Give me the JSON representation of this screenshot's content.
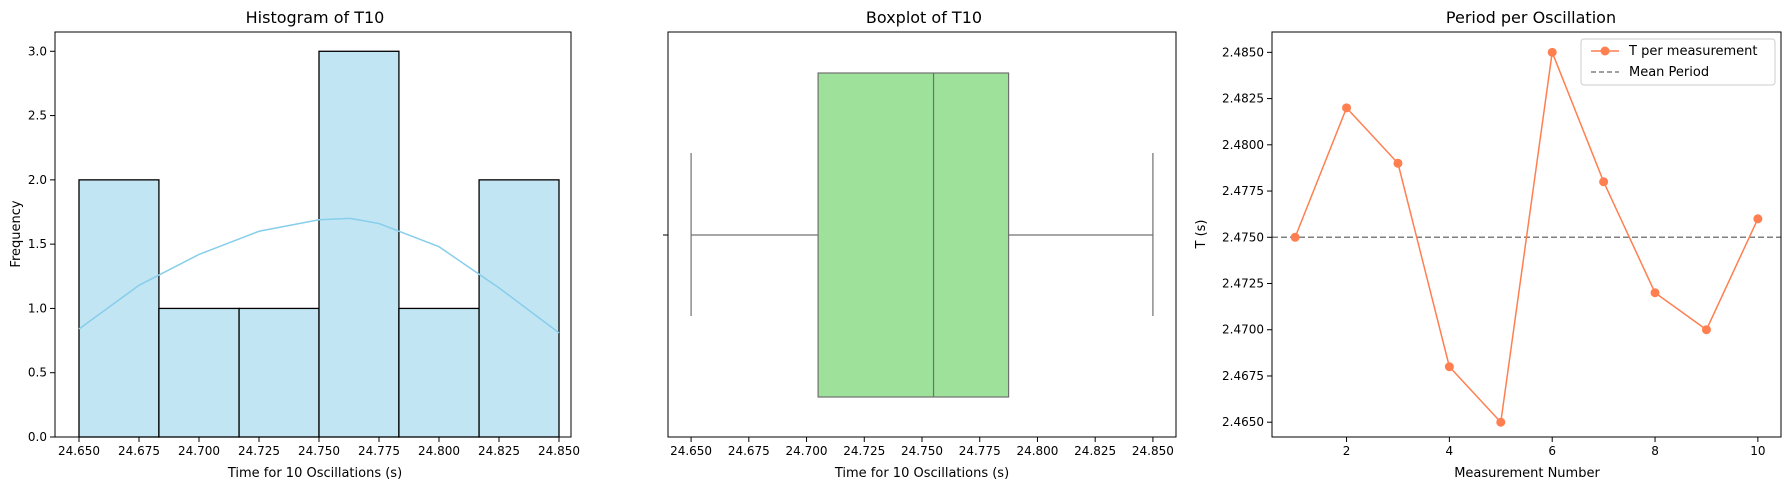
{
  "chart_data": [
    {
      "type": "bar",
      "title": "Histogram of T10",
      "xlabel": "Time for 10 Oscillations (s)",
      "ylabel": "Frequency",
      "xlim": [
        24.64,
        24.855
      ],
      "ylim": [
        0,
        3.15
      ],
      "xticks": [
        "24.650",
        "24.675",
        "24.700",
        "24.725",
        "24.750",
        "24.775",
        "24.800",
        "24.825",
        "24.850"
      ],
      "yticks": [
        "0.0",
        "0.5",
        "1.0",
        "1.5",
        "2.0",
        "2.5",
        "3.0"
      ],
      "bins": [
        {
          "start": 24.65,
          "end": 24.6833,
          "count": 2
        },
        {
          "start": 24.6833,
          "end": 24.7167,
          "count": 1
        },
        {
          "start": 24.7167,
          "end": 24.75,
          "count": 1
        },
        {
          "start": 24.75,
          "end": 24.7833,
          "count": 3
        },
        {
          "start": 24.7833,
          "end": 24.8167,
          "count": 1
        },
        {
          "start": 24.8167,
          "end": 24.85,
          "count": 2
        }
      ],
      "kde": {
        "x": [
          24.65,
          24.675,
          24.7,
          24.725,
          24.75,
          24.763,
          24.775,
          24.8,
          24.825,
          24.85
        ],
        "y": [
          0.84,
          1.18,
          1.42,
          1.6,
          1.69,
          1.7,
          1.66,
          1.48,
          1.16,
          0.81
        ]
      },
      "colors": {
        "bar": "#c2e5f4",
        "edge": "#000000",
        "kde": "#87ceeb"
      },
      "grid": false
    },
    {
      "type": "boxplot",
      "title": "Boxplot of T10",
      "xlabel": "Time for 10 Oscillations (s)",
      "xlim": [
        24.64,
        24.86
      ],
      "xticks": [
        "24.650",
        "24.675",
        "24.700",
        "24.725",
        "24.750",
        "24.775",
        "24.800",
        "24.825",
        "24.850"
      ],
      "stats": {
        "whisker_low": 24.65,
        "q1": 24.705,
        "median": 24.755,
        "q3": 24.7875,
        "whisker_high": 24.85
      },
      "colors": {
        "box": "#9de19a",
        "line": "#707070"
      },
      "grid": false
    },
    {
      "type": "line",
      "title": "Period per Oscillation",
      "xlabel": "Measurement Number",
      "ylabel": "T (s)",
      "xlim": [
        0.55,
        10.45
      ],
      "ylim": [
        2.4642,
        2.4861
      ],
      "xticks": [
        "2",
        "4",
        "6",
        "8",
        "10"
      ],
      "yticks": [
        "2.4650",
        "2.4675",
        "2.4700",
        "2.4725",
        "2.4750",
        "2.4775",
        "2.4800",
        "2.4825",
        "2.4850"
      ],
      "x": [
        1,
        2,
        3,
        4,
        5,
        6,
        7,
        8,
        9,
        10
      ],
      "series": [
        {
          "name": "T per measurement",
          "values": [
            2.475,
            2.482,
            2.479,
            2.468,
            2.465,
            2.485,
            2.478,
            2.472,
            2.47,
            2.476
          ],
          "color": "#ff7f50"
        }
      ],
      "hline": {
        "name": "Mean Period",
        "value": 2.475,
        "color": "#808080"
      },
      "legend": "top-right",
      "grid": false
    }
  ]
}
